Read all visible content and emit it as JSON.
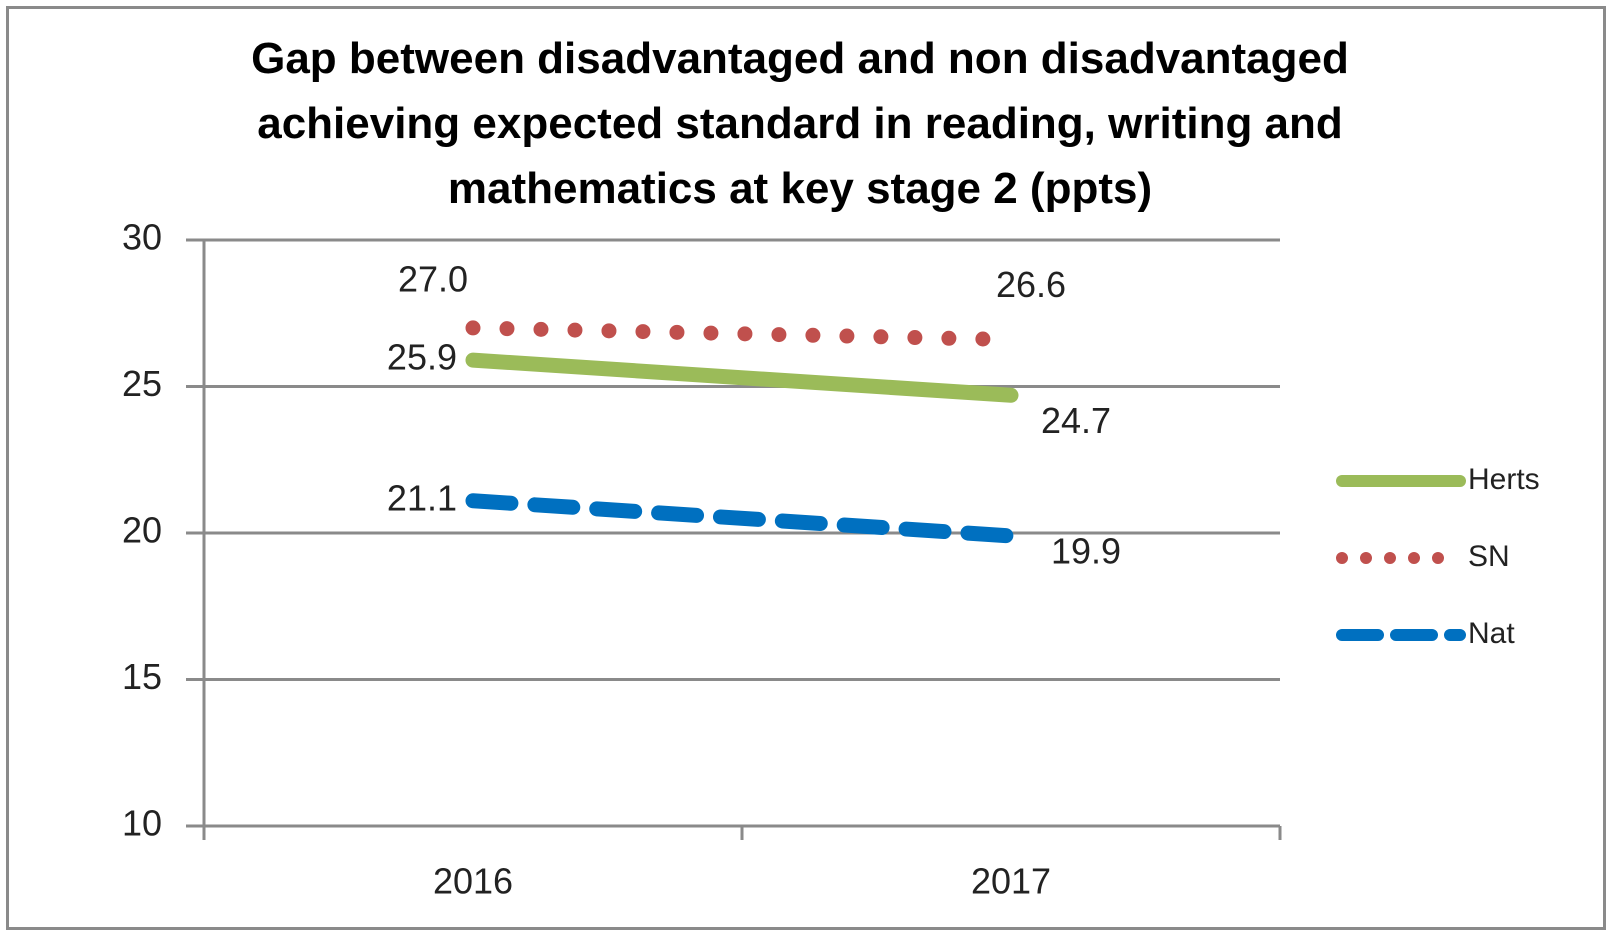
{
  "chart_data": {
    "type": "line",
    "title": "Gap between disadvantaged and non disadvantaged achieving expected standard in reading, writing and mathematics at key stage 2 (ppts)",
    "categories": [
      "2016",
      "2017"
    ],
    "series": [
      {
        "name": "Herts",
        "color": "#9bbb59",
        "style": "solid",
        "values": [
          25.9,
          24.7
        ],
        "value_labels": [
          "25.9",
          "24.7"
        ]
      },
      {
        "name": "SN",
        "color": "#c0504d",
        "style": "dotted",
        "values": [
          27.0,
          26.6
        ],
        "value_labels": [
          "27.0",
          "26.6"
        ]
      },
      {
        "name": "Nat",
        "color": "#0070c0",
        "style": "dashed",
        "values": [
          21.1,
          19.9
        ],
        "value_labels": [
          "21.1",
          "19.9"
        ]
      }
    ],
    "ylim": [
      10,
      30
    ],
    "yticks": [
      10,
      15,
      20,
      25,
      30
    ],
    "grid": true,
    "legend": "right"
  }
}
